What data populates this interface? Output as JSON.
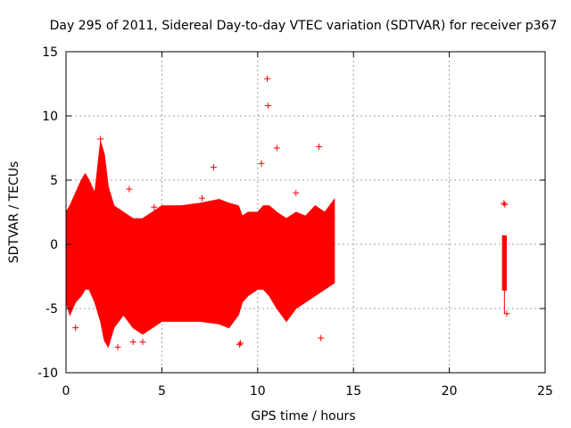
{
  "chart_data": {
    "type": "scatter",
    "title": "Day 295 of 2011, Sidereal Day-to-day VTEC variation (SDTVAR) for receiver p367",
    "xlabel": "GPS time / hours",
    "ylabel": "SDTVAR / TECUs",
    "xlim": [
      0,
      25
    ],
    "ylim": [
      -10,
      15
    ],
    "x_ticks": [
      "0",
      "5",
      "10",
      "15",
      "20",
      "25"
    ],
    "y_ticks": [
      "-10",
      "-5",
      "0",
      "5",
      "10",
      "15"
    ],
    "grid": true,
    "legend": "none",
    "series_color": "#ff0000",
    "envelope": {
      "name": "dense data band",
      "x": [
        0.0,
        0.2,
        0.5,
        0.8,
        1.0,
        1.2,
        1.5,
        1.8,
        2.0,
        2.2,
        2.5,
        3.0,
        3.5,
        4.0,
        4.5,
        5.0,
        6.0,
        7.0,
        8.0,
        8.5,
        9.0,
        9.2,
        9.5,
        10.0,
        10.3,
        10.6,
        11.0,
        11.5,
        12.0,
        12.5,
        13.0,
        13.5,
        14.0
      ],
      "upper": [
        2.5,
        3.0,
        4.0,
        5.0,
        5.5,
        5.0,
        4.0,
        8.0,
        7.0,
        4.5,
        3.0,
        2.5,
        2.0,
        2.0,
        2.5,
        3.0,
        3.0,
        3.2,
        3.5,
        3.2,
        3.0,
        2.2,
        2.5,
        2.5,
        3.0,
        3.0,
        2.5,
        2.0,
        2.5,
        2.2,
        3.0,
        2.5,
        3.5
      ],
      "lower": [
        -4.5,
        -5.5,
        -4.5,
        -4.0,
        -3.5,
        -3.5,
        -4.5,
        -6.0,
        -7.5,
        -8.0,
        -6.5,
        -5.5,
        -6.5,
        -7.0,
        -6.5,
        -6.0,
        -6.0,
        -6.0,
        -6.2,
        -6.5,
        -5.5,
        -4.5,
        -4.0,
        -3.5,
        -3.5,
        -4.0,
        -5.0,
        -6.0,
        -5.0,
        -4.5,
        -4.0,
        -3.5,
        -3.0
      ]
    },
    "isolated_points": {
      "x": [
        0.5,
        1.8,
        3.3,
        4.6,
        7.1,
        7.7,
        9.05,
        10.2,
        10.5,
        10.55,
        11.0,
        12.0,
        13.2,
        13.3,
        22.85,
        22.9,
        23.0,
        2.7,
        9.1,
        3.5,
        4.0,
        6.0
      ],
      "y": [
        -6.5,
        8.2,
        4.3,
        2.9,
        3.6,
        6.0,
        -7.8,
        6.3,
        12.9,
        10.8,
        7.5,
        4.0,
        7.6,
        -7.3,
        3.2,
        3.1,
        -5.4,
        -8.0,
        -7.7,
        -7.6,
        -7.6,
        -4.8
      ]
    },
    "secondary_segment": {
      "name": "late data around 23 h",
      "x": [
        22.75,
        23.0
      ],
      "upper": 0.7,
      "lower": -3.6,
      "min_point": -5.4,
      "top_points": [
        3.2,
        3.1
      ]
    }
  }
}
